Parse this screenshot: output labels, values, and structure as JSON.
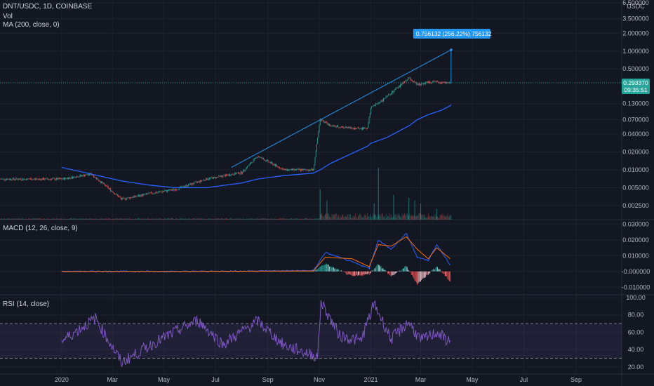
{
  "legend": {
    "symbol_line": "DNT/USDC, 1D, COINBASE",
    "vol": "Vol",
    "ma": "MA (200, close, 0)",
    "macd": "MACD (12, 26, close, 9)",
    "rsi": "RSI (14, close)"
  },
  "price_axis": {
    "currency": "USDC",
    "badge_price": "0.293370",
    "badge_countdown": "09:35:51"
  },
  "annotation": {
    "label": "0.756132 (256.22%) 756132"
  },
  "colors": {
    "background": "#131722",
    "up": "#26a69a",
    "down": "#ef5350",
    "ma_line": "#2962ff",
    "trend_line": "#2196f3",
    "macd_line": "#2962ff",
    "signal_line": "#ff6d00",
    "rsi_line": "#7e57c2",
    "rsi_band": "#7e57c2",
    "badge": "#26a69a",
    "annotation": "#2196f3"
  },
  "chart_data": [
    {
      "type": "line",
      "pane": "price",
      "scale": "log",
      "title": "DNT/USDC, 1D, COINBASE",
      "x": [
        "2020-01-01",
        "2020-02-05",
        "2020-03-12",
        "2020-04-15",
        "2020-05-15",
        "2020-06-20",
        "2020-08-01",
        "2020-08-20",
        "2020-09-20",
        "2020-10-25",
        "2020-11-02",
        "2020-11-15",
        "2020-12-10",
        "2020-12-28",
        "2021-01-01",
        "2021-01-20",
        "2021-02-15",
        "2021-02-25",
        "2021-03-10",
        "2021-03-25",
        "2021-04-05",
        "2021-04-06"
      ],
      "series": [
        {
          "name": "Close",
          "values": [
            0.007,
            0.0085,
            0.0032,
            0.004,
            0.0047,
            0.007,
            0.009,
            0.017,
            0.01,
            0.01,
            0.07,
            0.055,
            0.05,
            0.05,
            0.11,
            0.17,
            0.35,
            0.27,
            0.3,
            0.3,
            0.29,
            0.2934
          ]
        },
        {
          "name": "MA (200, close, 0)",
          "values": [
            0.011,
            0.0085,
            0.0065,
            0.0055,
            0.005,
            0.005,
            0.006,
            0.007,
            0.008,
            0.0088,
            0.01,
            0.013,
            0.019,
            0.025,
            0.028,
            0.035,
            0.055,
            0.07,
            0.085,
            0.1,
            0.12,
            0.125
          ]
        }
      ],
      "trendline": {
        "from": [
          "2020-07-20",
          0.011
        ],
        "to": [
          "2021-04-06",
          1.05
        ]
      },
      "measure": {
        "date": "2021-04-06",
        "from": 0.29,
        "to": 1.05
      },
      "y_ticks": [
        "6.500000",
        "3.500000",
        "2.000000",
        "1.000000",
        "0.500000",
        "0.130000",
        "0.070000",
        "0.040000",
        "0.020000",
        "0.010000",
        "0.005000",
        "0.002500"
      ],
      "ylim": [
        0.0018,
        6.5
      ]
    },
    {
      "type": "bar",
      "pane": "volume",
      "title": "Vol",
      "x": [
        "2020-11-02",
        "2020-11-10",
        "2021-01-05",
        "2021-01-10",
        "2021-01-28",
        "2021-02-15",
        "2021-02-22",
        "2021-03-01",
        "2021-03-20"
      ],
      "values": [
        0.55,
        0.35,
        0.3,
        0.95,
        0.45,
        0.4,
        0.35,
        0.3,
        0.2
      ]
    },
    {
      "type": "line",
      "pane": "macd",
      "title": "MACD (12, 26, close, 9)",
      "x": [
        "2020-01-01",
        "2020-06-01",
        "2020-10-25",
        "2020-11-08",
        "2020-12-10",
        "2020-12-30",
        "2021-01-10",
        "2021-01-25",
        "2021-02-12",
        "2021-02-25",
        "2021-03-10",
        "2021-03-20",
        "2021-04-05"
      ],
      "series": [
        {
          "name": "MACD",
          "values": [
            0.0,
            0.0,
            0.0005,
            0.012,
            0.006,
            0.002,
            0.02,
            0.014,
            0.024,
            0.009,
            0.007,
            0.017,
            0.004
          ]
        },
        {
          "name": "Signal",
          "values": [
            0.0,
            0.0,
            0.0003,
            0.009,
            0.008,
            0.003,
            0.017,
            0.016,
            0.022,
            0.014,
            0.008,
            0.015,
            0.008
          ]
        }
      ],
      "y_ticks": [
        "0.030000",
        "0.020000",
        "0.010000",
        "-0.000000",
        "-0.010000"
      ],
      "ylim": [
        -0.013,
        0.031
      ]
    },
    {
      "type": "line",
      "pane": "rsi",
      "title": "RSI (14, close)",
      "x": [
        "2020-01-01",
        "2020-02-10",
        "2020-03-12",
        "2020-04-20",
        "2020-06-10",
        "2020-07-10",
        "2020-08-20",
        "2020-09-20",
        "2020-10-30",
        "2020-11-03",
        "2020-11-25",
        "2020-12-20",
        "2021-01-05",
        "2021-01-25",
        "2021-02-15",
        "2021-03-01",
        "2021-03-20",
        "2021-04-05"
      ],
      "values": [
        50,
        76,
        25,
        48,
        74,
        46,
        73,
        45,
        32,
        95,
        56,
        50,
        93,
        52,
        72,
        50,
        60,
        48
      ],
      "bands": [
        30,
        70
      ],
      "y_ticks": [
        "100.00",
        "80.00",
        "60.00",
        "40.00",
        "20.00"
      ],
      "ylim": [
        15,
        100
      ]
    }
  ],
  "time_axis": [
    {
      "label": "2020",
      "date": "2020-01-01"
    },
    {
      "label": "Mar",
      "date": "2020-03-01"
    },
    {
      "label": "May",
      "date": "2020-05-01"
    },
    {
      "label": "Jul",
      "date": "2020-07-01"
    },
    {
      "label": "Sep",
      "date": "2020-09-01"
    },
    {
      "label": "Nov",
      "date": "2020-11-01"
    },
    {
      "label": "2021",
      "date": "2021-01-01"
    },
    {
      "label": "Mar",
      "date": "2021-03-01"
    },
    {
      "label": "May",
      "date": "2021-05-01"
    },
    {
      "label": "Jul",
      "date": "2021-07-01"
    },
    {
      "label": "Sep",
      "date": "2021-09-01"
    }
  ]
}
